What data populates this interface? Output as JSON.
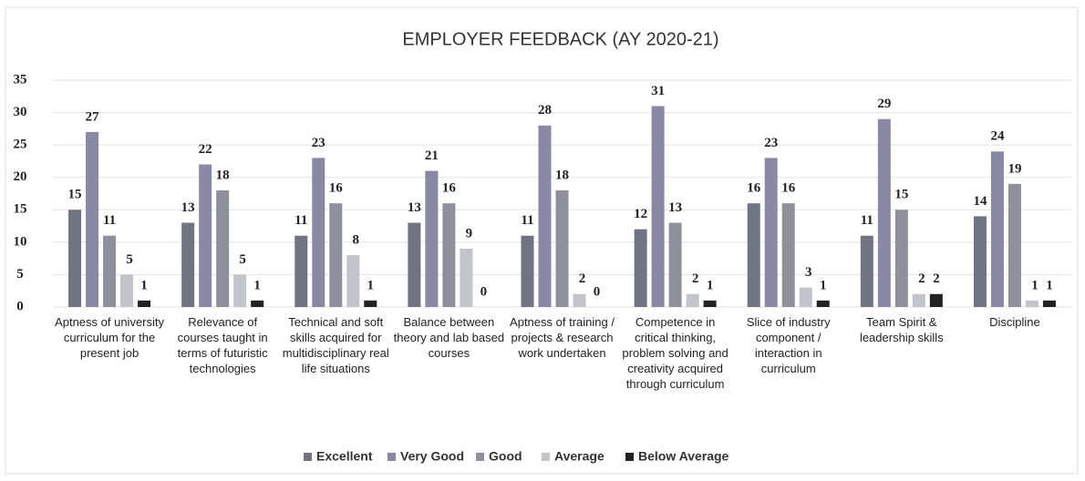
{
  "chart_data": {
    "type": "bar",
    "title": "EMPLOYER FEEDBACK (AY 2020-21)",
    "categories": [
      "Aptness of university curriculum for the present job",
      "Relevance of courses taught in terms of futuristic technologies",
      "Technical and soft skills acquired for multidisciplinary real life situations",
      "Balance between theory and lab based courses",
      "Aptness of training / projects & research work undertaken",
      "Competence in critical thinking, problem solving and creativity acquired through curriculum",
      "Slice of industry component / interaction in curriculum",
      "Team Spirit & leadership skills",
      "Discipline"
    ],
    "series": [
      {
        "name": "Excellent",
        "color": "#6f7480",
        "values": [
          15,
          13,
          11,
          13,
          11,
          12,
          16,
          11,
          14
        ]
      },
      {
        "name": "Very Good",
        "color": "#8a88a2",
        "values": [
          27,
          22,
          23,
          21,
          28,
          31,
          23,
          29,
          24
        ]
      },
      {
        "name": "Good",
        "color": "#90909c",
        "values": [
          11,
          18,
          16,
          16,
          18,
          13,
          16,
          15,
          19
        ]
      },
      {
        "name": "Average",
        "color": "#c3c3cb",
        "values": [
          5,
          5,
          8,
          9,
          2,
          2,
          3,
          2,
          1
        ]
      },
      {
        "name": "Below Average",
        "color": "#222222",
        "values": [
          1,
          1,
          1,
          0,
          0,
          1,
          1,
          2,
          1
        ]
      }
    ],
    "ylim": [
      0,
      35
    ],
    "yticks": [
      0,
      5,
      10,
      15,
      20,
      25,
      30,
      35
    ],
    "grid": true,
    "legend": "bottom"
  }
}
